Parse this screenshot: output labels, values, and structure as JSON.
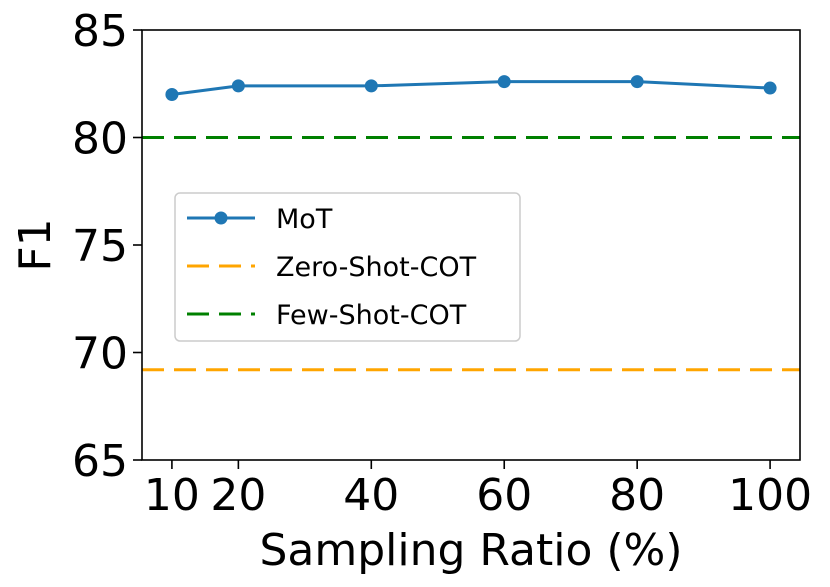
{
  "chart_data": {
    "type": "line",
    "title": "",
    "xlabel": "Sampling Ratio (%)",
    "ylabel": "F1",
    "xlim": [
      5.5,
      104.5
    ],
    "ylim": [
      65,
      85
    ],
    "xticks": [
      10,
      20,
      40,
      60,
      80,
      100
    ],
    "xtick_labels": [
      "10",
      "20",
      "40",
      "60",
      "80",
      "100"
    ],
    "yticks": [
      65,
      70,
      75,
      80,
      85
    ],
    "ytick_labels": [
      "65",
      "70",
      "75",
      "80",
      "85"
    ],
    "grid": false,
    "legend_position": "center-left",
    "series": [
      {
        "name": "MoT",
        "style": "solid-marker",
        "color": "#1f77b4",
        "x": [
          10,
          20,
          40,
          60,
          80,
          100
        ],
        "y": [
          82.0,
          82.4,
          82.4,
          82.6,
          82.6,
          82.3
        ]
      },
      {
        "name": "Zero-Shot-COT",
        "style": "dashed-hline",
        "color": "#ffa500",
        "y": 69.2
      },
      {
        "name": "Few-Shot-COT",
        "style": "dashed-hline",
        "color": "#008000",
        "y": 80.0
      }
    ]
  }
}
